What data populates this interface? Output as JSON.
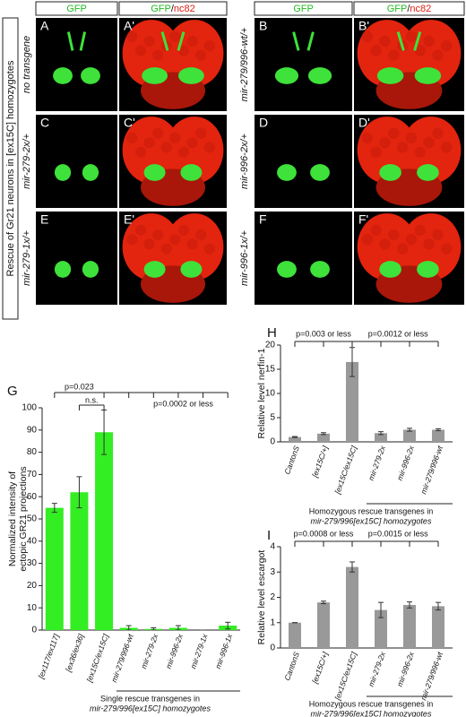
{
  "figure": {
    "columns": {
      "gfp": "GFP",
      "merge": [
        "GFP",
        "/",
        "nc82"
      ]
    },
    "side_label": "Rescue of Gr21 neurons in  [ex15C] homozygotes",
    "left_rows": [
      {
        "label": "no transgene",
        "panels": [
          "A",
          "A'"
        ]
      },
      {
        "label": "mir-279-2x/+",
        "panels": [
          "C",
          "C'"
        ]
      },
      {
        "label": "mir-279-1x/+",
        "panels": [
          "E",
          "E'"
        ]
      }
    ],
    "right_rows": [
      {
        "label": "mir-279/996-wt/+",
        "panels": [
          "B",
          "B'"
        ]
      },
      {
        "label": "mir-996-2x/+",
        "panels": [
          "D",
          "D'"
        ]
      },
      {
        "label": "mir-996-1x/+",
        "panels": [
          "F",
          "F'"
        ]
      }
    ]
  },
  "chart_data": [
    {
      "type": "bar",
      "panel_label": "G",
      "ylabel": [
        "Normalized intensity of",
        "ectopic GR21 projections"
      ],
      "categories": [
        "[ex117/ex117]",
        "[ex36/ex36]",
        "[ex15C/ex15C]",
        "mir-279/996-wt",
        "mir-279-2x",
        "mir-996-2x",
        "mir-279-1x",
        "mir-996-1x"
      ],
      "values": [
        55,
        62,
        89,
        1,
        0.5,
        1,
        0,
        2
      ],
      "errors": [
        2,
        7,
        10,
        1,
        0.5,
        1,
        0,
        1.5
      ],
      "color": "#33ee22",
      "ylim": [
        0,
        100
      ],
      "yticks": [
        0,
        10,
        20,
        30,
        40,
        50,
        60,
        70,
        80,
        90,
        100
      ],
      "annotations": [
        "p=0.023",
        "n.s.",
        "p=0.0002 or less"
      ],
      "group_label": [
        "Single rescue transgenes in",
        "mir-279/996[ex15C] homozygotes"
      ]
    },
    {
      "type": "bar",
      "panel_label": "H",
      "ylabel": [
        "Relative level nerfin-1"
      ],
      "categories": [
        "CantonS",
        "[ex15C/+]",
        "[ex15C/ex15C]",
        "mir-279-2x",
        "mir-996-2x",
        "mir-279/996-wt"
      ],
      "values": [
        1,
        1.7,
        16.5,
        1.8,
        2.5,
        2.5
      ],
      "errors": [
        0.1,
        0.2,
        3,
        0.3,
        0.3,
        0.2
      ],
      "color": "#999999",
      "ylim": [
        0,
        20
      ],
      "yticks": [
        0,
        5,
        10,
        15,
        20
      ],
      "annotations": [
        "p=0.003 or less",
        "p=0.0012 or less"
      ],
      "group_label": [
        "Homozygous rescue transgenes in",
        "mir-279/996[ex15C] homozygotes"
      ]
    },
    {
      "type": "bar",
      "panel_label": "I",
      "ylabel": [
        "Relative level escargot"
      ],
      "categories": [
        "CantonS",
        "[ex15C/+]",
        "[ex15C/ex15C]",
        "mir-279-2x",
        "mir-996-2x",
        "mir-279/996-wt"
      ],
      "values": [
        1,
        1.8,
        3.2,
        1.5,
        1.7,
        1.65
      ],
      "errors": [
        0,
        0.05,
        0.2,
        0.3,
        0.12,
        0.15
      ],
      "color": "#999999",
      "ylim": [
        0,
        4
      ],
      "yticks": [
        0,
        1,
        2,
        3,
        4
      ],
      "annotations": [
        "p=0.0008 or less",
        "p=0.0015 or less"
      ],
      "group_label": [
        "Homozygous rescue transgenes in",
        "mir-279/996[ex15C] homozygotes"
      ]
    }
  ]
}
